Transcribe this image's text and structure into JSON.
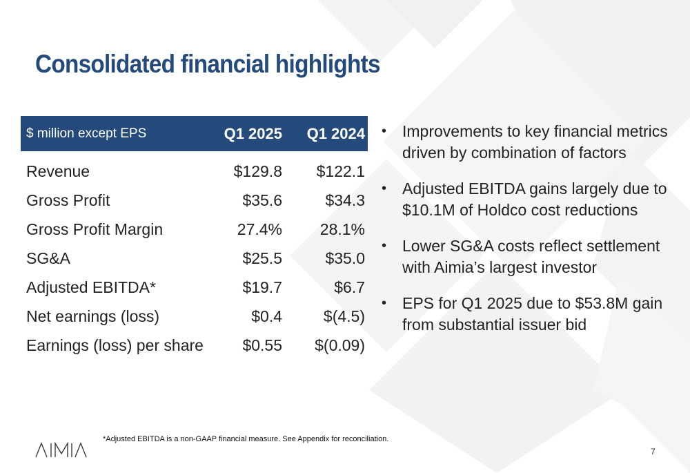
{
  "slide": {
    "title": "Consolidated financial highlights",
    "footnote": "*Adjusted  EBITDA is a non-GAAP financial measure. See Appendix for reconciliation.",
    "page_number": "7",
    "logo_text": "AIMIA"
  },
  "table": {
    "header": {
      "label": "$ million except EPS",
      "col1": "Q1 2025",
      "col2": "Q1 2024"
    },
    "rows": [
      {
        "label": "Revenue",
        "q1_2025": "$129.8",
        "q1_2024": "$122.1"
      },
      {
        "label": "Gross Profit",
        "q1_2025": "$35.6",
        "q1_2024": "$34.3"
      },
      {
        "label": "Gross Profit Margin",
        "q1_2025": "27.4%",
        "q1_2024": "28.1%"
      },
      {
        "label": "SG&A",
        "q1_2025": "$25.5",
        "q1_2024": "$35.0"
      },
      {
        "label": "Adjusted EBITDA*",
        "q1_2025": "$19.7",
        "q1_2024": "$6.7"
      },
      {
        "label": "Net earnings (loss)",
        "q1_2025": "$0.4",
        "q1_2024": "$(4.5)"
      },
      {
        "label": "Earnings (loss) per share",
        "q1_2025": "$0.55",
        "q1_2024": "$(0.09)"
      }
    ]
  },
  "bullets": [
    "Improvements to key financial metrics driven by combination of factors",
    "Adjusted EBITDA gains largely due to $10.1M of Holdco cost reductions",
    "Lower SG&A costs reflect settlement with Aimia’s largest investor",
    "EPS for Q1 2025 due to $53.8M gain from substantial issuer bid"
  ],
  "colors": {
    "brand_navy": "#234a7a",
    "background_shape": "#f3f3f5"
  }
}
